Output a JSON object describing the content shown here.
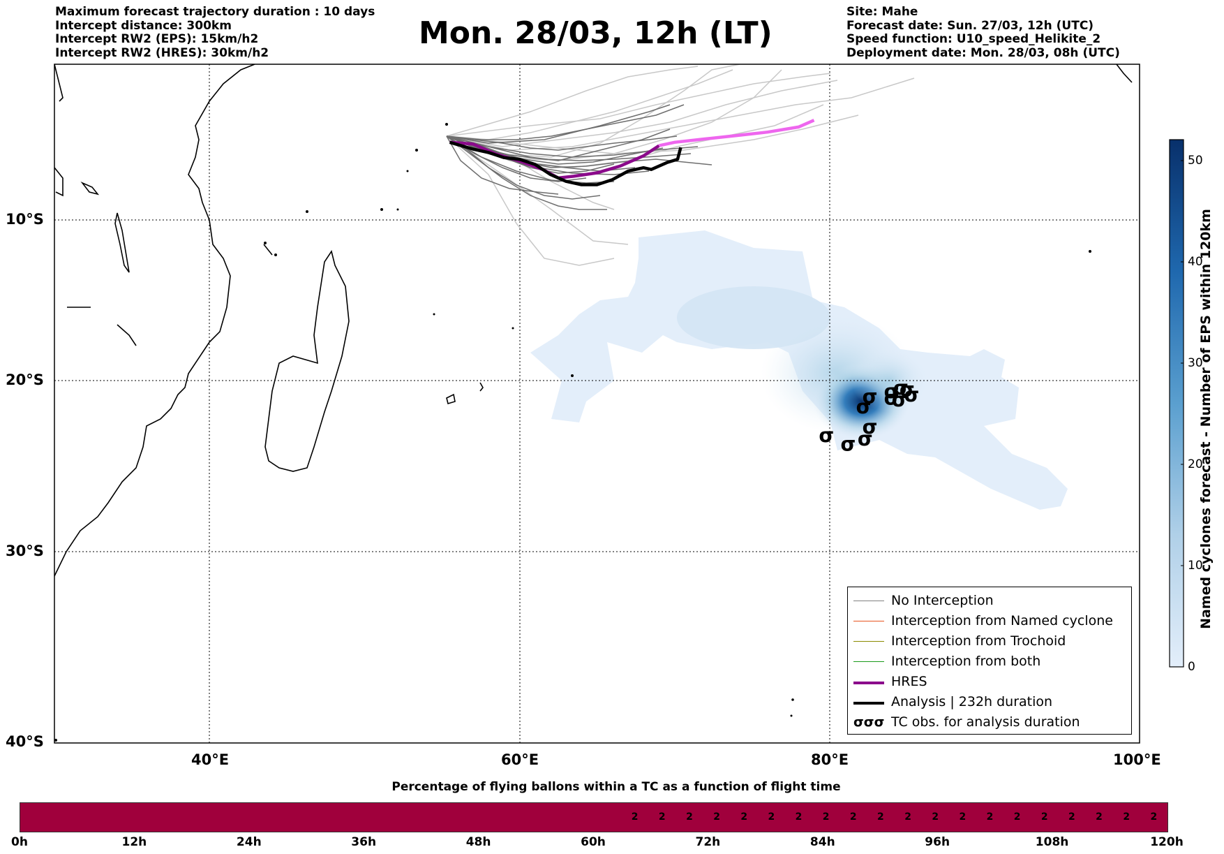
{
  "header_left": [
    "Maximum forecast trajectory duration : 10 days",
    "Intercept distance: 300km",
    "Intercept RW2 (EPS):  15km/h2",
    "Intercept RW2 (HRES): 30km/h2"
  ],
  "title": "Mon. 28/03, 12h (LT)",
  "header_right": [
    "Site: Mahe",
    "Forecast date: Sun. 27/03, 12h (UTC)",
    "Speed function: U10_speed_Helikite_2",
    "Deployment date: Mon. 28/03, 08h (UTC)"
  ],
  "map": {
    "lon_range": [
      30,
      100
    ],
    "lat_range": [
      -40,
      0
    ],
    "lon_ticks": [
      "40°E",
      "60°E",
      "80°E",
      "100°E"
    ],
    "lat_ticks": [
      "10°S",
      "20°S",
      "30°S",
      "40°S"
    ],
    "hres_track": [
      [
        55.5,
        -4.6
      ],
      [
        57,
        -4.7
      ],
      [
        58.5,
        -5.3
      ],
      [
        60,
        -5.7
      ],
      [
        61.5,
        -6.2
      ],
      [
        62.5,
        -6.7
      ],
      [
        63.5,
        -6.6
      ],
      [
        65,
        -6.4
      ],
      [
        66.5,
        -6
      ],
      [
        68,
        -5.4
      ],
      [
        69,
        -4.8
      ],
      [
        70,
        -4.6
      ],
      [
        72,
        -4.4
      ],
      [
        74,
        -4.2
      ],
      [
        76,
        -4
      ],
      [
        78,
        -3.7
      ],
      [
        79,
        -3.3
      ]
    ],
    "analysis_track": [
      [
        55.5,
        -4.6
      ],
      [
        57,
        -5
      ],
      [
        58,
        -5.2
      ],
      [
        59,
        -5.5
      ],
      [
        60,
        -5.6
      ],
      [
        61,
        -5.9
      ],
      [
        62,
        -6.5
      ],
      [
        63,
        -6.9
      ],
      [
        64,
        -7.1
      ],
      [
        65,
        -7.1
      ],
      [
        66,
        -6.8
      ],
      [
        67,
        -6.3
      ],
      [
        68,
        -6.1
      ],
      [
        68.5,
        -6.2
      ],
      [
        69.5,
        -5.8
      ],
      [
        70.2,
        -5.6
      ],
      [
        70.4,
        -4.9
      ]
    ],
    "tc_obs": [
      [
        79.8,
        -21.9
      ],
      [
        81.2,
        -22.4
      ],
      [
        82.3,
        -22.1
      ],
      [
        82.6,
        -21.4
      ],
      [
        82.2,
        -20.2
      ],
      [
        82.6,
        -19.6
      ],
      [
        84,
        -19.3
      ],
      [
        84.6,
        -19.1
      ],
      [
        85,
        -19.2
      ],
      [
        85.3,
        -19.5
      ],
      [
        84.5,
        -19.8
      ],
      [
        84,
        -19.7
      ]
    ]
  },
  "colorbar": {
    "label": "Named cyclones forecast - Number of EPS within 120km",
    "ticks": [
      "0",
      "10",
      "20",
      "30",
      "40",
      "50"
    ],
    "min": 0,
    "max": 52,
    "color_low": "#e3eefa",
    "color_high": "#08306b"
  },
  "legend": [
    {
      "label": "No Interception",
      "color": "#808080",
      "style": "thin"
    },
    {
      "label": "Interception from Named cyclone",
      "color": "#e8541e",
      "style": "thin"
    },
    {
      "label": "Interception from Trochoid",
      "color": "#8b8b00",
      "style": "thin"
    },
    {
      "label": "Interception from both",
      "color": "#1a9a1a",
      "style": "thin"
    },
    {
      "label": "HRES",
      "color": "#8b0a8b",
      "style": "thick"
    },
    {
      "label": "Analysis | 232h duration",
      "color": "#000000",
      "style": "thick"
    },
    {
      "label": "TC obs. for analysis duration",
      "color": "#000000",
      "style": "symbol",
      "symbol": "σσσ"
    }
  ],
  "bar": {
    "title": "Percentage of flying ballons within a TC as a function of flight time",
    "fill_color": "#a0003c",
    "segments": [
      "",
      "",
      "",
      "",
      "",
      "",
      "",
      "",
      "",
      "",
      "",
      "",
      "",
      "",
      "",
      "",
      "",
      "",
      "",
      "",
      "",
      "",
      "2",
      "2",
      "2",
      "2",
      "2",
      "2",
      "2",
      "2",
      "2",
      "2",
      "2",
      "2",
      "2",
      "2",
      "2",
      "2",
      "2",
      "2",
      "2",
      "2"
    ],
    "labels": [
      "0h",
      "12h",
      "24h",
      "36h",
      "48h",
      "60h",
      "72h",
      "84h",
      "96h",
      "108h",
      "120h"
    ]
  }
}
